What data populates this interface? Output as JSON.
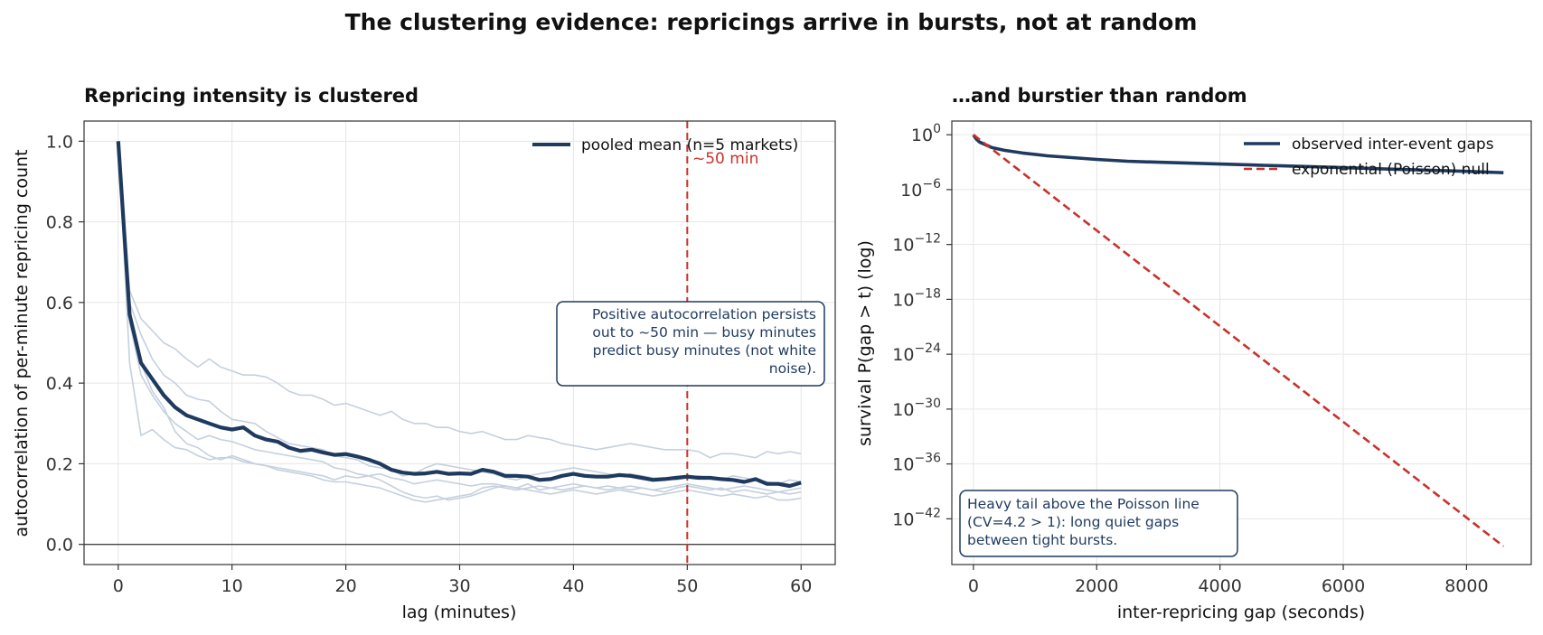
{
  "suptitle": "The clustering evidence: repricings arrive in bursts, not at random",
  "colors": {
    "navy": "#1f3a5f",
    "light": "#c5d0de",
    "red": "#c8322b"
  },
  "chart_data": [
    {
      "type": "line",
      "title": "Repricing intensity is clustered",
      "xlabel": "lag (minutes)",
      "ylabel": "autocorrelation of per-minute repricing count",
      "xlim": [
        -3,
        63
      ],
      "ylim": [
        -0.05,
        1.05
      ],
      "xticks": [
        0,
        10,
        20,
        30,
        40,
        50,
        60
      ],
      "yticks": [
        0.0,
        0.2,
        0.4,
        0.6,
        0.8,
        1.0
      ],
      "ytick_labels": [
        "0.0",
        "0.2",
        "0.4",
        "0.6",
        "0.8",
        "1.0"
      ],
      "grid": true,
      "legend_position": "top-right",
      "legend": [
        "pooled mean (n=5 markets)"
      ],
      "vline": {
        "x": 50,
        "label": "~50 min"
      },
      "hline": {
        "y": 0
      },
      "annotation": "Positive autocorrelation persists out to ~50 min — busy minutes predict busy minutes (not white noise).",
      "annotation_lines": [
        "Positive autocorrelation persists",
        "out to ~50 min — busy minutes",
        "predict busy minutes (not white",
        "noise)."
      ],
      "x": [
        0,
        1,
        2,
        3,
        4,
        5,
        6,
        7,
        8,
        9,
        10,
        11,
        12,
        13,
        14,
        15,
        16,
        17,
        18,
        19,
        20,
        21,
        22,
        23,
        24,
        25,
        26,
        27,
        28,
        29,
        30,
        31,
        32,
        33,
        34,
        35,
        36,
        37,
        38,
        39,
        40,
        41,
        42,
        43,
        44,
        45,
        46,
        47,
        48,
        49,
        50,
        51,
        52,
        53,
        54,
        55,
        56,
        57,
        58,
        59,
        60
      ],
      "series": [
        {
          "name": "pooled mean (n=5 markets)",
          "role": "mean",
          "values": [
            1.0,
            0.57,
            0.45,
            0.41,
            0.37,
            0.34,
            0.32,
            0.31,
            0.3,
            0.29,
            0.285,
            0.29,
            0.27,
            0.26,
            0.255,
            0.24,
            0.232,
            0.235,
            0.228,
            0.222,
            0.224,
            0.218,
            0.21,
            0.2,
            0.185,
            0.178,
            0.175,
            0.176,
            0.18,
            0.175,
            0.176,
            0.175,
            0.185,
            0.18,
            0.17,
            0.17,
            0.168,
            0.16,
            0.162,
            0.17,
            0.175,
            0.17,
            0.168,
            0.168,
            0.172,
            0.17,
            0.165,
            0.16,
            0.162,
            0.165,
            0.168,
            0.165,
            0.165,
            0.162,
            0.16,
            0.155,
            0.162,
            0.15,
            0.15,
            0.145,
            0.153
          ]
        },
        {
          "role": "market",
          "values": [
            1.0,
            0.63,
            0.56,
            0.53,
            0.5,
            0.485,
            0.46,
            0.44,
            0.46,
            0.44,
            0.43,
            0.42,
            0.42,
            0.415,
            0.4,
            0.38,
            0.37,
            0.37,
            0.36,
            0.345,
            0.35,
            0.34,
            0.33,
            0.32,
            0.33,
            0.31,
            0.3,
            0.3,
            0.29,
            0.29,
            0.28,
            0.275,
            0.28,
            0.27,
            0.26,
            0.26,
            0.27,
            0.265,
            0.26,
            0.25,
            0.245,
            0.24,
            0.235,
            0.24,
            0.245,
            0.25,
            0.245,
            0.24,
            0.235,
            0.235,
            0.235,
            0.23,
            0.215,
            0.225,
            0.225,
            0.22,
            0.215,
            0.23,
            0.225,
            0.23,
            0.225
          ]
        },
        {
          "role": "market",
          "values": [
            1.0,
            0.6,
            0.52,
            0.46,
            0.42,
            0.4,
            0.37,
            0.36,
            0.355,
            0.33,
            0.31,
            0.305,
            0.3,
            0.28,
            0.265,
            0.25,
            0.245,
            0.24,
            0.235,
            0.22,
            0.215,
            0.21,
            0.195,
            0.19,
            0.185,
            0.17,
            0.175,
            0.19,
            0.2,
            0.195,
            0.19,
            0.185,
            0.18,
            0.175,
            0.165,
            0.16,
            0.17,
            0.175,
            0.18,
            0.185,
            0.19,
            0.185,
            0.18,
            0.175,
            0.17,
            0.175,
            0.17,
            0.165,
            0.165,
            0.16,
            0.165,
            0.17,
            0.165,
            0.16,
            0.17,
            0.165,
            0.16,
            0.155,
            0.15,
            0.16,
            0.155
          ]
        },
        {
          "role": "market",
          "values": [
            1.0,
            0.45,
            0.27,
            0.285,
            0.26,
            0.24,
            0.235,
            0.22,
            0.21,
            0.215,
            0.215,
            0.205,
            0.2,
            0.195,
            0.19,
            0.185,
            0.18,
            0.175,
            0.17,
            0.16,
            0.17,
            0.165,
            0.17,
            0.175,
            0.165,
            0.16,
            0.15,
            0.155,
            0.16,
            0.155,
            0.15,
            0.145,
            0.15,
            0.15,
            0.145,
            0.14,
            0.15,
            0.135,
            0.14,
            0.145,
            0.15,
            0.145,
            0.14,
            0.145,
            0.14,
            0.135,
            0.14,
            0.135,
            0.13,
            0.14,
            0.145,
            0.14,
            0.135,
            0.14,
            0.13,
            0.135,
            0.13,
            0.125,
            0.13,
            0.125,
            0.13
          ]
        },
        {
          "role": "market",
          "values": [
            1.0,
            0.55,
            0.42,
            0.37,
            0.33,
            0.3,
            0.28,
            0.26,
            0.27,
            0.26,
            0.255,
            0.245,
            0.235,
            0.23,
            0.225,
            0.22,
            0.215,
            0.21,
            0.205,
            0.19,
            0.185,
            0.175,
            0.17,
            0.16,
            0.145,
            0.13,
            0.12,
            0.115,
            0.12,
            0.11,
            0.115,
            0.12,
            0.13,
            0.14,
            0.145,
            0.14,
            0.135,
            0.13,
            0.125,
            0.13,
            0.135,
            0.13,
            0.125,
            0.13,
            0.135,
            0.13,
            0.125,
            0.12,
            0.125,
            0.13,
            0.135,
            0.13,
            0.125,
            0.12,
            0.125,
            0.12,
            0.115,
            0.12,
            0.11,
            0.11,
            0.115
          ]
        },
        {
          "role": "market",
          "values": [
            1.0,
            0.58,
            0.45,
            0.38,
            0.34,
            0.28,
            0.25,
            0.24,
            0.22,
            0.21,
            0.22,
            0.21,
            0.2,
            0.195,
            0.185,
            0.18,
            0.175,
            0.17,
            0.16,
            0.155,
            0.155,
            0.15,
            0.145,
            0.14,
            0.13,
            0.12,
            0.11,
            0.105,
            0.11,
            0.115,
            0.12,
            0.125,
            0.14,
            0.145,
            0.14,
            0.135,
            0.14,
            0.145,
            0.14,
            0.135,
            0.14,
            0.145,
            0.14,
            0.135,
            0.14,
            0.145,
            0.14,
            0.135,
            0.14,
            0.145,
            0.15,
            0.145,
            0.14,
            0.135,
            0.14,
            0.145,
            0.14,
            0.135,
            0.13,
            0.135,
            0.14
          ]
        }
      ]
    },
    {
      "type": "line",
      "title": "…and burstier than random",
      "xlabel": "inter-repricing gap (seconds)",
      "ylabel": "survival  P(gap > t)  (log)",
      "xlim": [
        -350,
        9050
      ],
      "yscale": "log",
      "ylim_exp": [
        -47,
        1.5
      ],
      "xticks": [
        0,
        2000,
        4000,
        6000,
        8000
      ],
      "yticks_exp": [
        0,
        -6,
        -12,
        -18,
        -24,
        -30,
        -36,
        -42
      ],
      "grid": true,
      "legend_position": "top-right",
      "legend": [
        "observed inter-event gaps",
        "exponential (Poisson) null"
      ],
      "annotation": "Heavy tail above the Poisson line (CV=4.2 > 1): long quiet gaps between tight bursts.",
      "annotation_lines": [
        "Heavy tail above the Poisson line",
        "(CV=4.2 > 1): long quiet gaps",
        "between tight bursts."
      ],
      "series": [
        {
          "name": "observed inter-event gaps",
          "style": "solid",
          "x": [
            0,
            50,
            100,
            200,
            300,
            500,
            800,
            1200,
            1600,
            2000,
            2500,
            3000,
            3500,
            4000,
            4500,
            5000,
            6000,
            7000,
            8000,
            8600
          ],
          "log10_y": [
            0,
            -0.5,
            -0.8,
            -1.1,
            -1.4,
            -1.7,
            -2.0,
            -2.3,
            -2.5,
            -2.7,
            -2.9,
            -3.0,
            -3.1,
            -3.2,
            -3.3,
            -3.4,
            -3.6,
            -3.8,
            -4.0,
            -4.15
          ]
        },
        {
          "name": "exponential (Poisson) null",
          "style": "dashed",
          "x": [
            0,
            8600
          ],
          "log10_y": [
            0,
            -45
          ]
        }
      ]
    }
  ]
}
